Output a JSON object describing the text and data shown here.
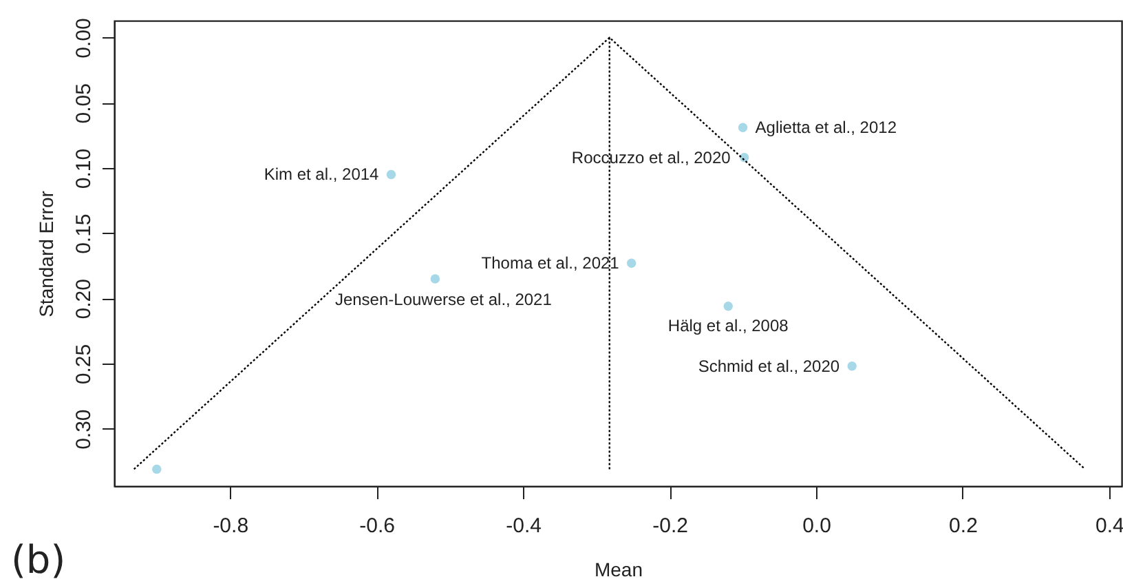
{
  "chart_data": {
    "type": "scatter",
    "xlabel": "Mean",
    "ylabel": "Standard Error",
    "xlim": [
      -0.958,
      0.417
    ],
    "ylim": [
      0.344,
      -0.013
    ],
    "xticks": [
      -0.8,
      -0.6,
      -0.4,
      -0.2,
      {
        "value": 0,
        "label": "0.0"
      },
      0.2,
      0.4
    ],
    "yticks": [
      {
        "value": 0,
        "label": "0.00"
      },
      0.05,
      {
        "value": 0.1,
        "label": "0.10"
      },
      0.15,
      {
        "value": 0.2,
        "label": "0.20"
      },
      0.25,
      {
        "value": 0.3,
        "label": "0.30"
      }
    ],
    "grid": false,
    "series": [
      {
        "marker": "circle",
        "color": "#a6d8e7",
        "x": [
          -0.58,
          -0.52,
          -0.252,
          -0.1,
          -0.098,
          -0.12,
          0.049,
          -0.9
        ],
        "values": [
          0.105,
          0.185,
          0.173,
          0.069,
          0.092,
          0.206,
          0.252,
          0.331
        ]
      },
      {
        "type": "line",
        "color": "#000000",
        "line_style": "dotted",
        "x": [
          -0.931,
          -0.282,
          0.367
        ],
        "values": [
          0.331,
          0,
          0.331
        ]
      },
      {
        "type": "line",
        "color": "#000000",
        "line_style": "dotted",
        "x": [
          -0.282,
          -0.282
        ],
        "values": [
          0,
          0.331
        ]
      }
    ],
    "annotations": [
      {
        "text": "Kim et al., 2014",
        "x": -0.58,
        "y": 0.105
      },
      {
        "text": "Jensen-Louwerse et al., 2021",
        "x": -0.52,
        "y": 0.185
      },
      {
        "text": "Thoma et al., 2021",
        "x": -0.252,
        "y": 0.173
      },
      {
        "text": "Aglietta et al., 2012",
        "x": -0.1,
        "y": 0.069
      },
      {
        "text": "Roccuzzo et al., 2020",
        "x": -0.098,
        "y": 0.092
      },
      {
        "text": "Hälg et al., 2008",
        "x": -0.12,
        "y": 0.206
      },
      {
        "text": "Schmid et al., 2020",
        "x": 0.049,
        "y": 0.252
      },
      "(b)"
    ]
  }
}
